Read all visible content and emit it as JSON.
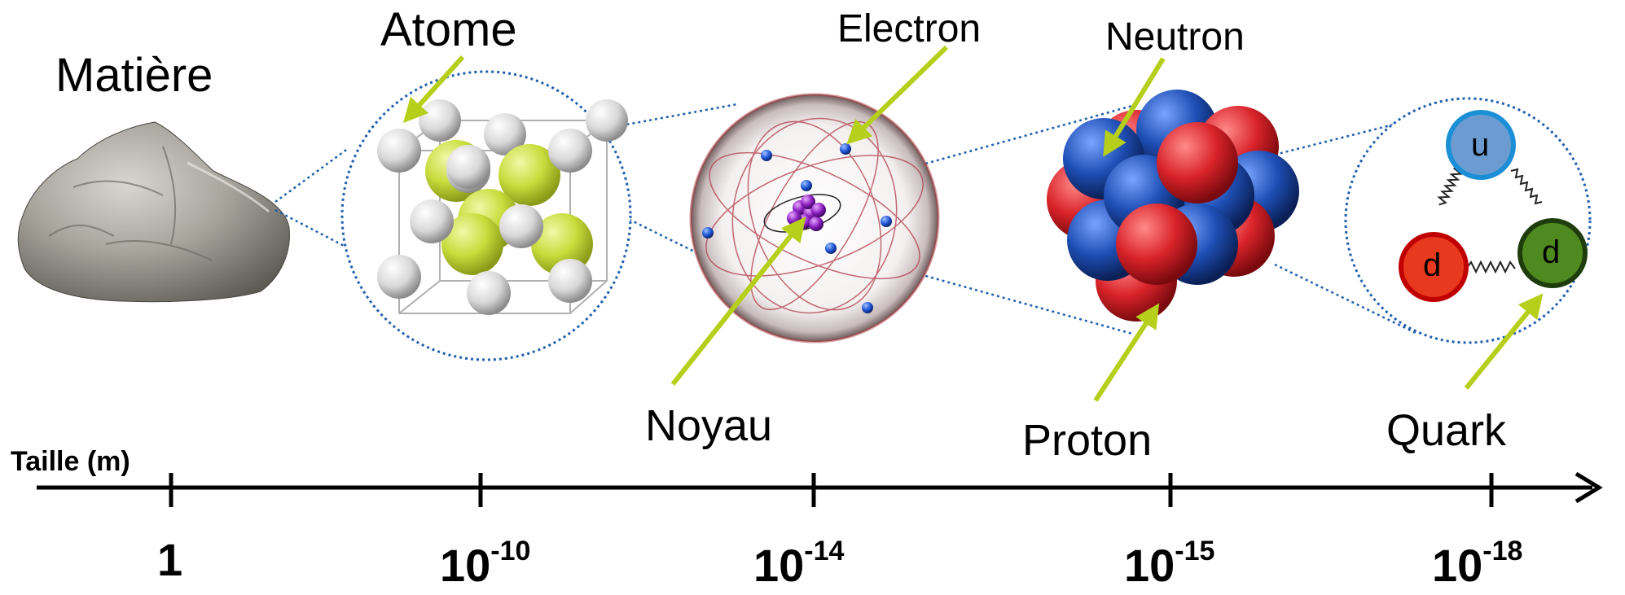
{
  "labels": {
    "matiere": "Matière",
    "atome": "Atome",
    "electron": "Electron",
    "neutron": "Neutron",
    "noyau": "Noyau",
    "proton": "Proton",
    "quark": "Quark"
  },
  "axis": {
    "title": "Taille (m)",
    "ticks": [
      {
        "base": "1",
        "exp": ""
      },
      {
        "base": "10",
        "exp": "-10"
      },
      {
        "base": "10",
        "exp": "-14"
      },
      {
        "base": "10",
        "exp": "-15"
      },
      {
        "base": "10",
        "exp": "-18"
      }
    ]
  },
  "quarks": {
    "top": "u",
    "left": "d",
    "right": "d"
  },
  "colors": {
    "arrow": "#b5cf1a",
    "dotted": "#1f5fae",
    "proton": "#d9232a",
    "neutron": "#1e4fb5",
    "crystal_yellow": "#c8dc3c",
    "quark_u": "#6b9bd1",
    "quark_d_left": "#e8381e",
    "quark_d_right": "#4e8a1f"
  },
  "icons": [
    "rock-image",
    "crystal-lattice-icon",
    "atom-icon",
    "nucleus-icon",
    "quark-triangle-icon"
  ]
}
